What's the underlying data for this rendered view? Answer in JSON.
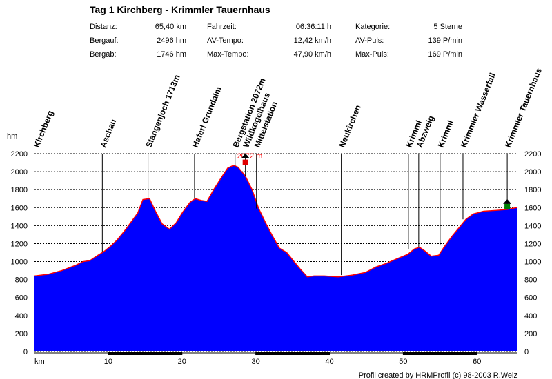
{
  "chart_data": {
    "type": "area",
    "title": "Tag 1 Kirchberg - Krimmler Tauernhaus",
    "stats": [
      [
        "Distanz:",
        "65,40 km",
        "Fahrzeit:",
        "06:36:11 h",
        "Kategorie:",
        "5 Sterne"
      ],
      [
        "Bergauf:",
        "2496 hm",
        "AV-Tempo:",
        "12,42 km/h",
        "AV-Puls:",
        "139 P/min"
      ],
      [
        "Bergab:",
        "1746 hm",
        "Max-Tempo:",
        "47,90 km/h",
        "Max-Puls:",
        "169 P/min"
      ]
    ],
    "y_label": "hm",
    "x_label": "km",
    "max_label": "2072 m",
    "footer": "Profil created by HRMProfil (c) 98-2003 R.Welz",
    "color": "#0000ff",
    "line_color": "#ff0000",
    "x": [
      0,
      1.9,
      3.7,
      5.6,
      6.6,
      7.5,
      8.4,
      9.4,
      10.3,
      11.2,
      12.2,
      13.1,
      14.0,
      14.7,
      15.6,
      16.4,
      17.3,
      18.3,
      19.2,
      20.1,
      21.1,
      21.8,
      22.6,
      23.4,
      24.3,
      25.3,
      26.2,
      27.0,
      27.6,
      28.6,
      29.5,
      30.4,
      31.4,
      32.3,
      33.2,
      34.2,
      35.1,
      36.0,
      37.0,
      37.9,
      39.3,
      41.2,
      43.1,
      44.9,
      46.3,
      47.7,
      49.1,
      50.6,
      51.5,
      52.2,
      52.9,
      53.8,
      54.8,
      55.7,
      56.6,
      57.6,
      58.5,
      59.5,
      60.9,
      62.7,
      64.1,
      65.4
    ],
    "y": [
      840,
      860,
      900,
      960,
      1000,
      1010,
      1060,
      1110,
      1170,
      1240,
      1340,
      1440,
      1540,
      1690,
      1700,
      1560,
      1420,
      1360,
      1430,
      1550,
      1660,
      1700,
      1680,
      1670,
      1800,
      1930,
      2040,
      2070,
      2050,
      1950,
      1800,
      1590,
      1420,
      1280,
      1150,
      1100,
      1010,
      920,
      830,
      840,
      840,
      830,
      850,
      880,
      940,
      980,
      1030,
      1080,
      1140,
      1160,
      1120,
      1060,
      1070,
      1180,
      1280,
      1380,
      1470,
      1530,
      1560,
      1570,
      1580,
      1600
    ],
    "waypoints": [
      {
        "name": "Kirchberg",
        "km": 0.2
      },
      {
        "name": "Aschau",
        "km": 9.2
      },
      {
        "name": "Stangenjoch 1713m",
        "km": 15.4
      },
      {
        "name": "Haferl Grundalm",
        "km": 21.7
      },
      {
        "name": "Bergstation 2072m",
        "km": 27.2
      },
      {
        "name": "Wildkogelhaus",
        "km": 28.6
      },
      {
        "name": "Mittelstation",
        "km": 30.1
      },
      {
        "name": "Neukirchen",
        "km": 41.6
      },
      {
        "name": "Krimml",
        "km": 50.7
      },
      {
        "name": "Abzweig",
        "km": 52.1
      },
      {
        "name": "Krimml",
        "km": 55.0
      },
      {
        "name": "Krimmler Wasserfall",
        "km": 58.1
      },
      {
        "name": "Krimmler Tauernhaus",
        "km": 64.1
      }
    ],
    "xlim": [
      0,
      65.4
    ],
    "ylim": [
      0,
      2200
    ],
    "xticks": [
      10,
      20,
      30,
      40,
      50,
      60
    ],
    "yticks": [
      0,
      200,
      400,
      600,
      800,
      1000,
      1200,
      1400,
      1600,
      1800,
      2000,
      2200
    ],
    "grid": true
  }
}
